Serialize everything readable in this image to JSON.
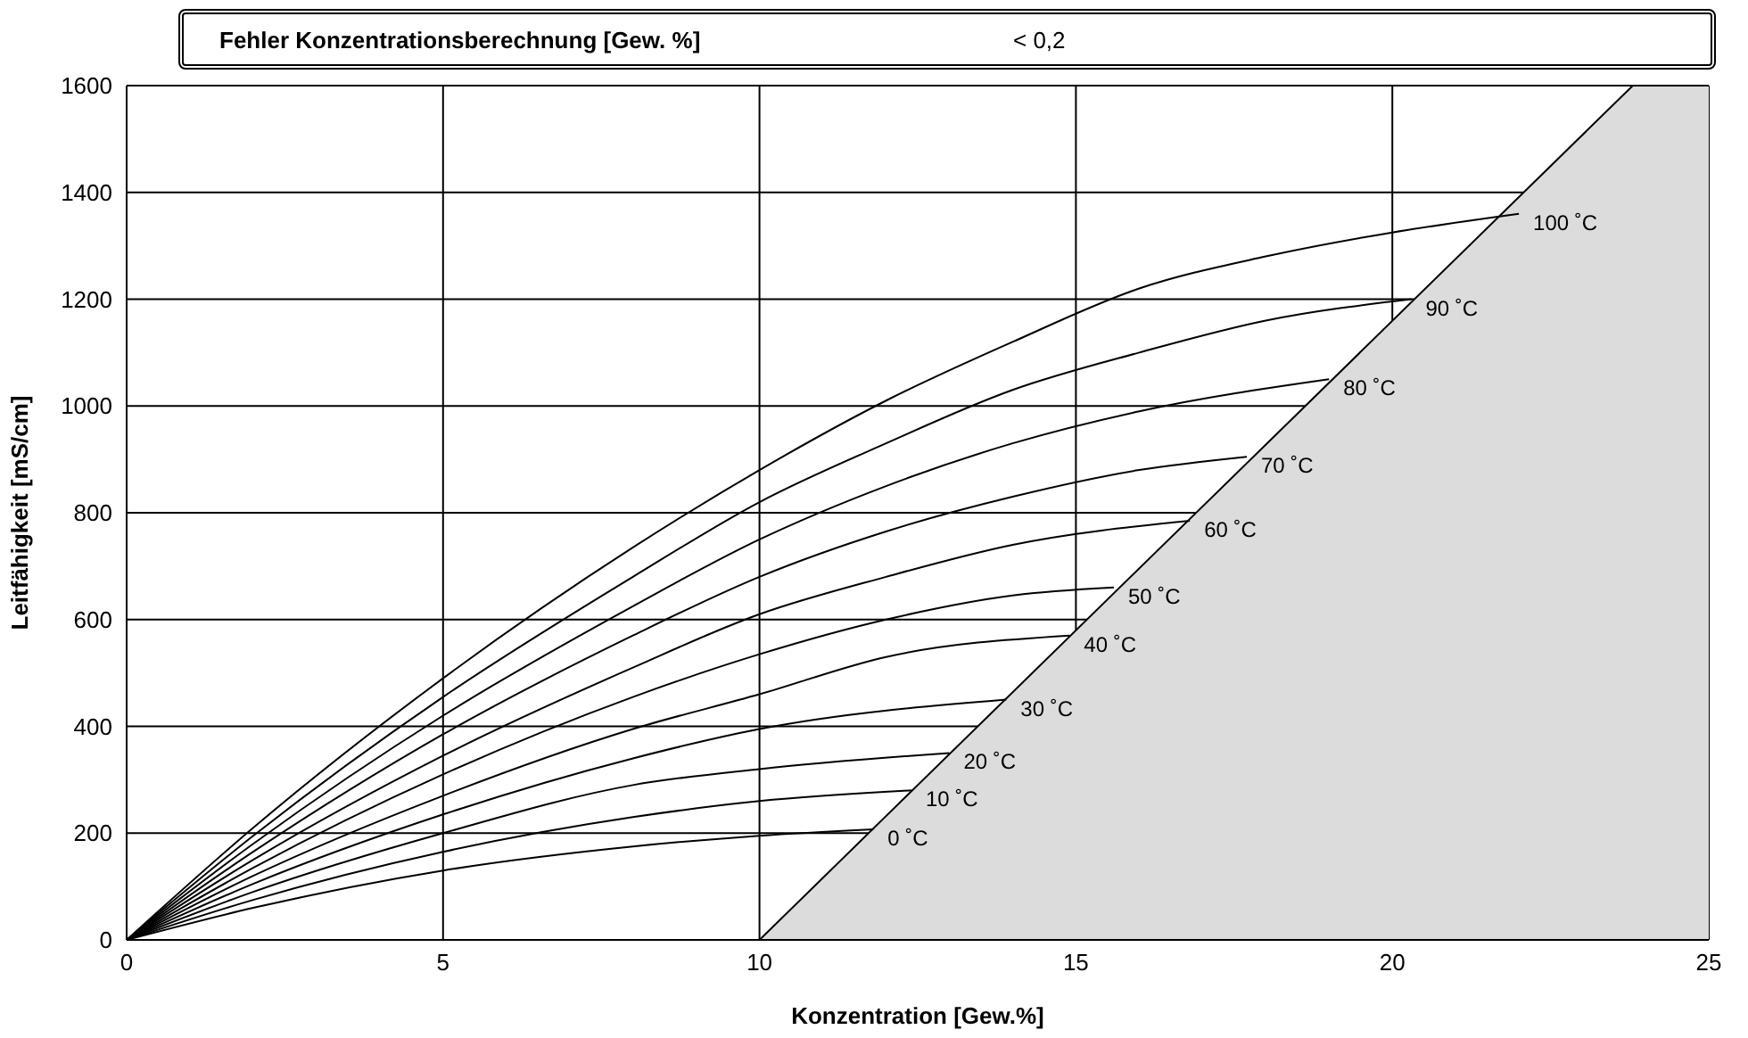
{
  "chart_data": {
    "type": "line",
    "title": "Fehler Konzentrationsberechnung [Gew. %]",
    "annotations": [
      "< 0,2"
    ],
    "xlabel": "Konzentration [Gew.%]",
    "ylabel": "Leitfähigkeit [mS/cm]",
    "xlim": [
      0,
      25
    ],
    "xticks": [
      0,
      5,
      10,
      15,
      20,
      25
    ],
    "ylim": [
      0,
      1600
    ],
    "yticks": [
      0,
      200,
      400,
      600,
      800,
      1000,
      1200,
      1400,
      1600
    ],
    "grid": true,
    "legend": false,
    "marker": "none",
    "line_style": "solid",
    "series": [
      {
        "type": "area",
        "color": "#dcdcdc",
        "x": [
          10,
          23.8,
          25
        ],
        "values": [
          0,
          1600,
          1600
        ]
      },
      {
        "name": "0 ˚C",
        "color": "#000000",
        "x": [
          0,
          2,
          5,
          8,
          10,
          11.8
        ],
        "values": [
          0,
          60,
          130,
          175,
          195,
          207
        ]
      },
      {
        "name": "10 ˚C",
        "color": "#000000",
        "x": [
          0,
          2,
          5,
          8,
          10,
          12.4
        ],
        "values": [
          0,
          75,
          165,
          230,
          260,
          280
        ]
      },
      {
        "name": "20 ˚C",
        "color": "#000000",
        "x": [
          0,
          2,
          5,
          8,
          10,
          13
        ],
        "values": [
          0,
          90,
          200,
          290,
          320,
          350
        ]
      },
      {
        "name": "30 ˚C",
        "color": "#000000",
        "x": [
          0,
          2,
          5,
          8,
          10,
          13.9
        ],
        "values": [
          0,
          105,
          235,
          340,
          395,
          450
        ]
      },
      {
        "name": "40 ˚C",
        "color": "#000000",
        "x": [
          0,
          2,
          5,
          8,
          10,
          12,
          14.9
        ],
        "values": [
          0,
          120,
          270,
          395,
          460,
          530,
          570
        ]
      },
      {
        "name": "50 ˚C",
        "color": "#000000",
        "x": [
          0,
          2,
          5,
          8,
          10,
          12,
          14,
          15.6
        ],
        "values": [
          0,
          135,
          310,
          455,
          535,
          600,
          645,
          660
        ]
      },
      {
        "name": "60 ˚C",
        "color": "#000000",
        "x": [
          0,
          2,
          5,
          8,
          10,
          12,
          14,
          16.8
        ],
        "values": [
          0,
          150,
          345,
          510,
          610,
          680,
          740,
          785
        ]
      },
      {
        "name": "70 ˚C",
        "color": "#000000",
        "x": [
          0,
          2,
          5,
          8,
          10,
          12,
          14,
          16,
          17.7
        ],
        "values": [
          0,
          165,
          385,
          570,
          680,
          765,
          830,
          880,
          905
        ]
      },
      {
        "name": "80 ˚C",
        "color": "#000000",
        "x": [
          0,
          2,
          5,
          8,
          10,
          12,
          14,
          16,
          19
        ],
        "values": [
          0,
          180,
          420,
          625,
          750,
          850,
          930,
          990,
          1050
        ]
      },
      {
        "name": "90 ˚C",
        "color": "#000000",
        "x": [
          0,
          2,
          5,
          8,
          10,
          12,
          14,
          16,
          18,
          20.3
        ],
        "values": [
          0,
          195,
          455,
          680,
          820,
          930,
          1030,
          1100,
          1160,
          1200
        ]
      },
      {
        "name": "100 ˚C",
        "color": "#000000",
        "x": [
          0,
          2,
          5,
          8,
          10,
          12,
          14,
          16,
          18,
          20,
          22
        ],
        "values": [
          0,
          210,
          490,
          735,
          880,
          1010,
          1120,
          1220,
          1280,
          1325,
          1360
        ]
      }
    ]
  }
}
